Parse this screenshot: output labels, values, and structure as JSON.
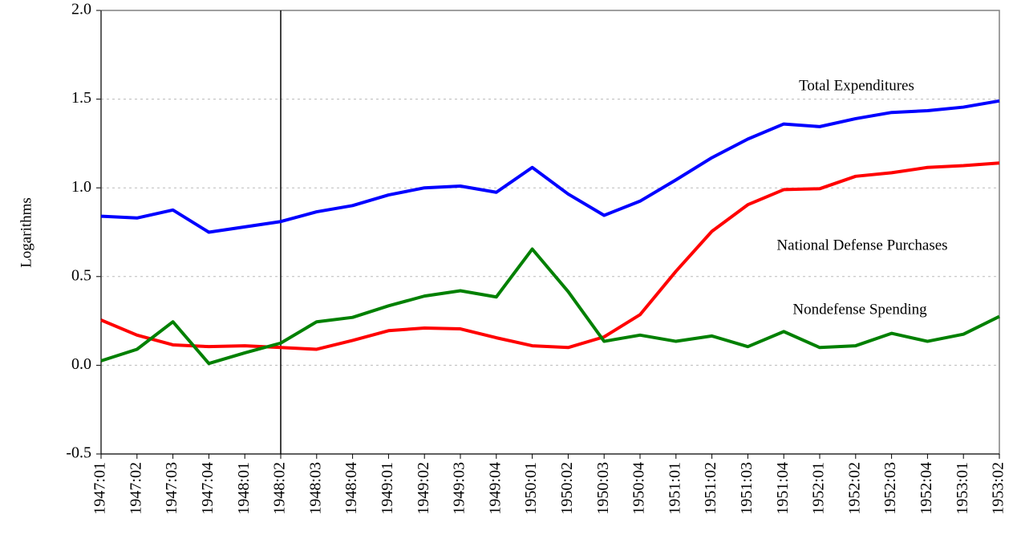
{
  "chart_data": {
    "type": "line",
    "y_label": "Logarithms",
    "categories": [
      "1947:01",
      "1947:02",
      "1947:03",
      "1947:04",
      "1948:01",
      "1948:02",
      "1948:03",
      "1948:04",
      "1949:01",
      "1949:02",
      "1949:03",
      "1949:04",
      "1950:01",
      "1950:02",
      "1950:03",
      "1950:04",
      "1951:01",
      "1951:02",
      "1951:03",
      "1951:04",
      "1952:01",
      "1952:02",
      "1952:03",
      "1952:04",
      "1953:01",
      "1953:02"
    ],
    "series": [
      {
        "name": "Total Expenditures",
        "color": "#0000ff",
        "values": [
          0.84,
          0.83,
          0.875,
          0.75,
          0.78,
          0.81,
          0.865,
          0.9,
          0.96,
          1.0,
          1.01,
          0.975,
          1.115,
          0.965,
          0.845,
          0.925,
          1.045,
          1.17,
          1.275,
          1.36,
          1.345,
          1.39,
          1.425,
          1.435,
          1.455,
          1.49
        ]
      },
      {
        "name": "National Defense Purchases",
        "color": "#ff0000",
        "values": [
          0.255,
          0.17,
          0.115,
          0.105,
          0.11,
          0.1,
          0.09,
          0.14,
          0.195,
          0.21,
          0.205,
          0.155,
          0.11,
          0.1,
          0.16,
          0.285,
          0.53,
          0.755,
          0.905,
          0.99,
          0.995,
          1.065,
          1.085,
          1.115,
          1.125,
          1.14
        ]
      },
      {
        "name": "Nondefense Spending",
        "color": "#008000",
        "values": [
          0.025,
          0.09,
          0.245,
          0.01,
          0.07,
          0.125,
          0.245,
          0.27,
          0.335,
          0.39,
          0.42,
          0.385,
          0.655,
          0.415,
          0.135,
          0.17,
          0.135,
          0.165,
          0.105,
          0.19,
          0.1,
          0.11,
          0.18,
          0.135,
          0.175,
          0.275
        ]
      }
    ],
    "ylim": [
      -0.5,
      2.0
    ],
    "yticks": [
      {
        "value": -0.5,
        "label": "-0.5"
      },
      {
        "value": 0,
        "label": "0.0"
      },
      {
        "value": 0.5,
        "label": "0.5"
      },
      {
        "value": 1,
        "label": "1.0"
      },
      {
        "value": 1.5,
        "label": "1.5"
      },
      {
        "value": 2,
        "label": "2.0"
      }
    ],
    "grid": true,
    "vline": "1948:02"
  }
}
